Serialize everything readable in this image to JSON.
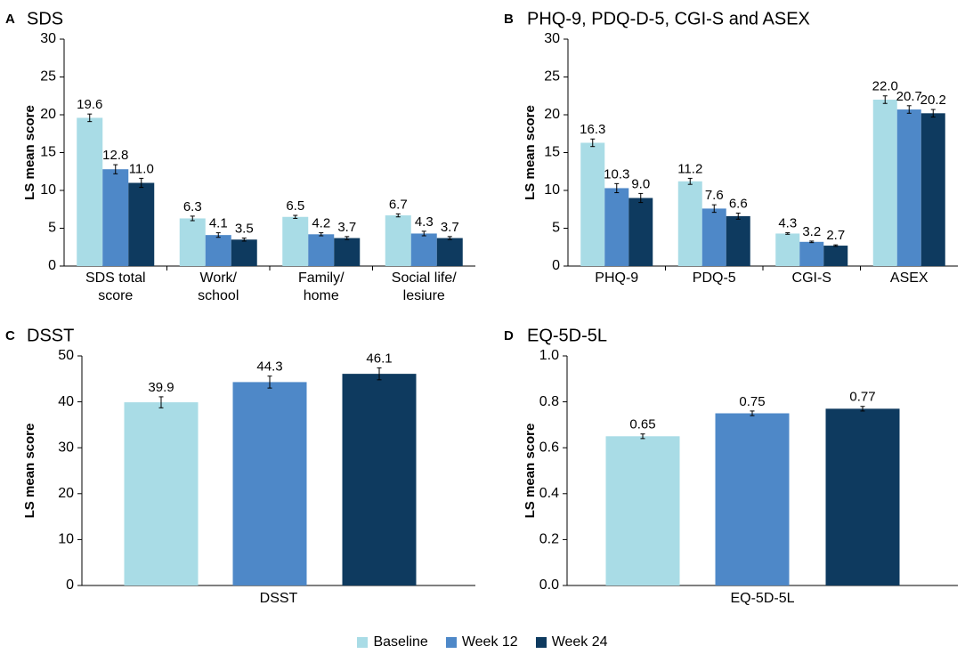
{
  "legend": {
    "baseline": "Baseline",
    "week12": "Week 12",
    "week24": "Week 24"
  },
  "colors": {
    "baseline": "#a9dce6",
    "week12": "#4e88c8",
    "week24": "#0e3a5f",
    "axis": "#000000",
    "error_bar": "#000000"
  },
  "chart_data": [
    {
      "panel_label": "A",
      "type": "bar",
      "title": "SDS",
      "ylabel": "LS mean score",
      "xlabel": "",
      "ylim": [
        0,
        30
      ],
      "yticks": [
        "0",
        "5",
        "10",
        "15",
        "20",
        "25",
        "30"
      ],
      "categories": [
        [
          "SDS total",
          "score"
        ],
        [
          "Work/",
          "school"
        ],
        [
          "Family/",
          "home"
        ],
        [
          "Social life/",
          "lesiure"
        ]
      ],
      "series": [
        {
          "name": "Baseline",
          "values": [
            19.6,
            6.3,
            6.5,
            6.7
          ],
          "labels": [
            "19.6",
            "6.3",
            "6.5",
            "6.7"
          ],
          "errors": [
            0.5,
            0.3,
            0.2,
            0.2
          ]
        },
        {
          "name": "Week 12",
          "values": [
            12.8,
            4.1,
            4.2,
            4.3
          ],
          "labels": [
            "12.8",
            "4.1",
            "4.2",
            "4.3"
          ],
          "errors": [
            0.6,
            0.3,
            0.2,
            0.3
          ]
        },
        {
          "name": "Week 24",
          "values": [
            11.0,
            3.5,
            3.7,
            3.7
          ],
          "labels": [
            "11.0",
            "3.5",
            "3.7",
            "3.7"
          ],
          "errors": [
            0.6,
            0.2,
            0.2,
            0.2
          ]
        }
      ]
    },
    {
      "panel_label": "B",
      "type": "bar",
      "title": "PHQ-9, PDQ-D-5, CGI-S and ASEX",
      "ylabel": "LS mean score",
      "xlabel": "",
      "ylim": [
        0,
        30
      ],
      "yticks": [
        "0",
        "5",
        "10",
        "15",
        "20",
        "25",
        "30"
      ],
      "categories": [
        [
          "PHQ-9"
        ],
        [
          "PDQ-5"
        ],
        [
          "CGI-S"
        ],
        [
          "ASEX"
        ]
      ],
      "series": [
        {
          "name": "Baseline",
          "values": [
            16.3,
            11.2,
            4.3,
            22.0
          ],
          "labels": [
            "16.3",
            "11.2",
            "4.3",
            "22.0"
          ],
          "errors": [
            0.5,
            0.4,
            0.1,
            0.5
          ]
        },
        {
          "name": "Week 12",
          "values": [
            10.3,
            7.6,
            3.2,
            20.7
          ],
          "labels": [
            "10.3",
            "7.6",
            "3.2",
            "20.7"
          ],
          "errors": [
            0.6,
            0.5,
            0.1,
            0.5
          ]
        },
        {
          "name": "Week 24",
          "values": [
            9.0,
            6.6,
            2.7,
            20.2
          ],
          "labels": [
            "9.0",
            "6.6",
            "2.7",
            "20.2"
          ],
          "errors": [
            0.6,
            0.4,
            0.1,
            0.5
          ]
        }
      ]
    },
    {
      "panel_label": "C",
      "type": "bar",
      "title": "DSST",
      "ylabel": "LS mean score",
      "xlabel": "",
      "ylim": [
        0,
        50
      ],
      "yticks": [
        "0",
        "10",
        "20",
        "30",
        "40",
        "50"
      ],
      "categories": [
        [
          "DSST"
        ]
      ],
      "series": [
        {
          "name": "Baseline",
          "values": [
            39.9
          ],
          "labels": [
            "39.9"
          ],
          "errors": [
            1.2
          ]
        },
        {
          "name": "Week 12",
          "values": [
            44.3
          ],
          "labels": [
            "44.3"
          ],
          "errors": [
            1.3
          ]
        },
        {
          "name": "Week 24",
          "values": [
            46.1
          ],
          "labels": [
            "46.1"
          ],
          "errors": [
            1.3
          ]
        }
      ]
    },
    {
      "panel_label": "D",
      "type": "bar",
      "title": "EQ-5D-5L",
      "ylabel": "LS mean score",
      "xlabel": "",
      "ylim": [
        0,
        1.0
      ],
      "yticks": [
        "0.0",
        "0.2",
        "0.4",
        "0.6",
        "0.8",
        "1.0"
      ],
      "categories": [
        [
          "EQ-5D-5L"
        ]
      ],
      "series": [
        {
          "name": "Baseline",
          "values": [
            0.65
          ],
          "labels": [
            "0.65"
          ],
          "errors": [
            0.01
          ]
        },
        {
          "name": "Week 12",
          "values": [
            0.75
          ],
          "labels": [
            "0.75"
          ],
          "errors": [
            0.01
          ]
        },
        {
          "name": "Week 24",
          "values": [
            0.77
          ],
          "labels": [
            "0.77"
          ],
          "errors": [
            0.01
          ]
        }
      ]
    }
  ]
}
